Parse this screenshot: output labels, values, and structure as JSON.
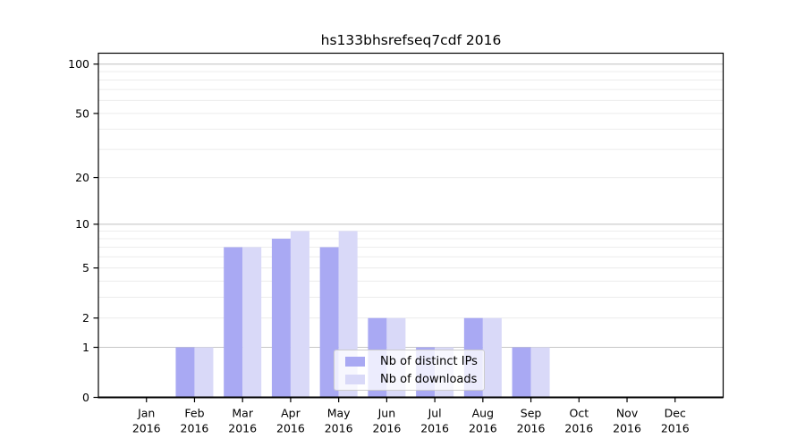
{
  "chart_data": {
    "type": "bar",
    "title": "hs133bhsrefseq7cdf 2016",
    "year_label": "2016",
    "categories": [
      "Jan",
      "Feb",
      "Mar",
      "Apr",
      "May",
      "Jun",
      "Jul",
      "Aug",
      "Sep",
      "Oct",
      "Nov",
      "Dec"
    ],
    "series": [
      {
        "name": "Nb of distinct IPs",
        "color": "#a9a9f3",
        "values": [
          0,
          1,
          7,
          8,
          7,
          2,
          1,
          2,
          1,
          0,
          0,
          0
        ]
      },
      {
        "name": "Nb of downloads",
        "color": "#d9d9f8",
        "values": [
          0,
          1,
          7,
          9,
          9,
          2,
          1,
          2,
          1,
          0,
          0,
          0
        ]
      }
    ],
    "yscale": "log1p",
    "ylim": [
      0,
      115
    ],
    "yticks": [
      0,
      1,
      2,
      5,
      10,
      20,
      50,
      100
    ],
    "gridlines_minor": [
      2,
      3,
      4,
      5,
      6,
      7,
      8,
      9,
      20,
      30,
      40,
      50,
      60,
      70,
      80,
      90
    ],
    "gridlines_major": [
      1,
      10,
      100
    ],
    "grid": true,
    "legend_position": "lower-center",
    "xlabel": "",
    "ylabel": ""
  }
}
